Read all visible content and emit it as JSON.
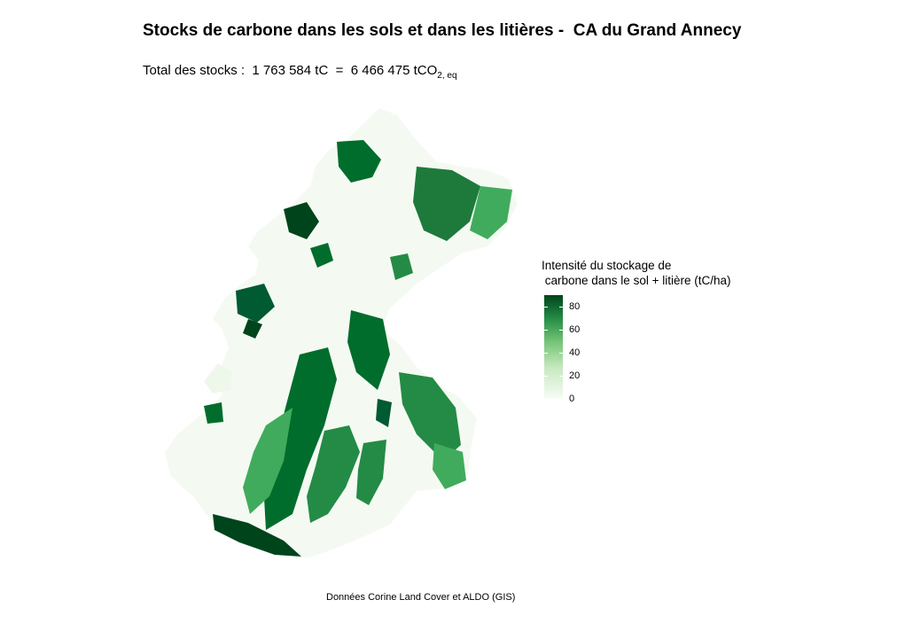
{
  "title": "Stocks de carbone dans les sols et dans les litières -  CA du Grand Annecy",
  "subtitle": {
    "prefix": "Total des stocks :  1 763 584 tC  =  6 466 475 tCO",
    "subscript": "2, eq"
  },
  "legend": {
    "title_line1": "Intensité du stockage de",
    "title_line2": " carbone dans le sol + litière (tC/ha)",
    "min": 0,
    "max": 90,
    "ticks": [
      {
        "label": "80",
        "value": 80
      },
      {
        "label": "60",
        "value": 60
      },
      {
        "label": "40",
        "value": 40
      },
      {
        "label": "20",
        "value": 20
      },
      {
        "label": "0",
        "value": 0
      }
    ],
    "colors": {
      "low": "#f7fcf5",
      "mid1": "#c7e9c0",
      "mid2": "#74c476",
      "mid3": "#238b45",
      "high": "#00441b"
    }
  },
  "caption": "Données Corine Land Cover et ALDO (GIS)"
}
